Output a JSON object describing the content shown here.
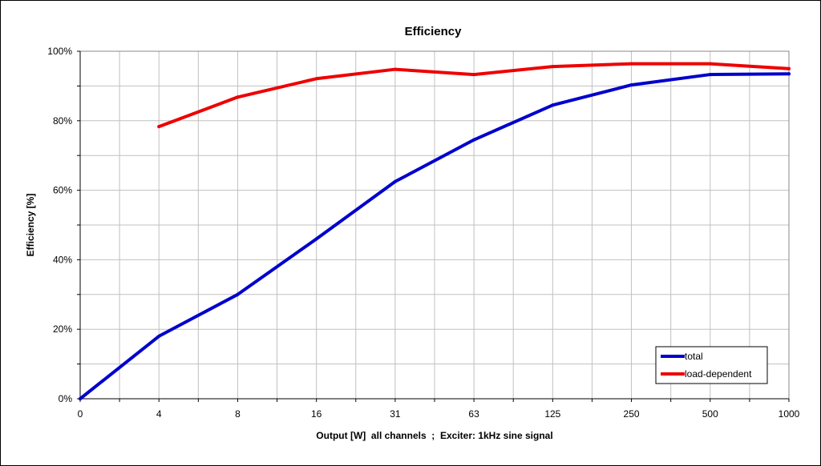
{
  "chart_data": {
    "type": "line",
    "title": "Efficiency",
    "xlabel": "Output [W]  all channels  ;  Exciter: 1kHz sine signal",
    "ylabel": "Efficiency [%]",
    "categories": [
      "0",
      "4",
      "8",
      "16",
      "31",
      "63",
      "125",
      "250",
      "500",
      "1000"
    ],
    "y_ticks": [
      "0%",
      "20%",
      "40%",
      "60%",
      "80%",
      "100%"
    ],
    "ylim": [
      0,
      100
    ],
    "grid": true,
    "legend_position": "bottom-right",
    "series": [
      {
        "name": "total",
        "color": "#0000cc",
        "values": [
          0,
          18,
          30,
          46,
          62.5,
          74.5,
          84.5,
          90.3,
          93.3,
          93.5
        ]
      },
      {
        "name": "load-dependent",
        "color": "#ee0000",
        "values": [
          null,
          78.3,
          86.8,
          92.1,
          94.8,
          93.3,
          95.6,
          96.4,
          96.4,
          95
        ]
      }
    ]
  }
}
